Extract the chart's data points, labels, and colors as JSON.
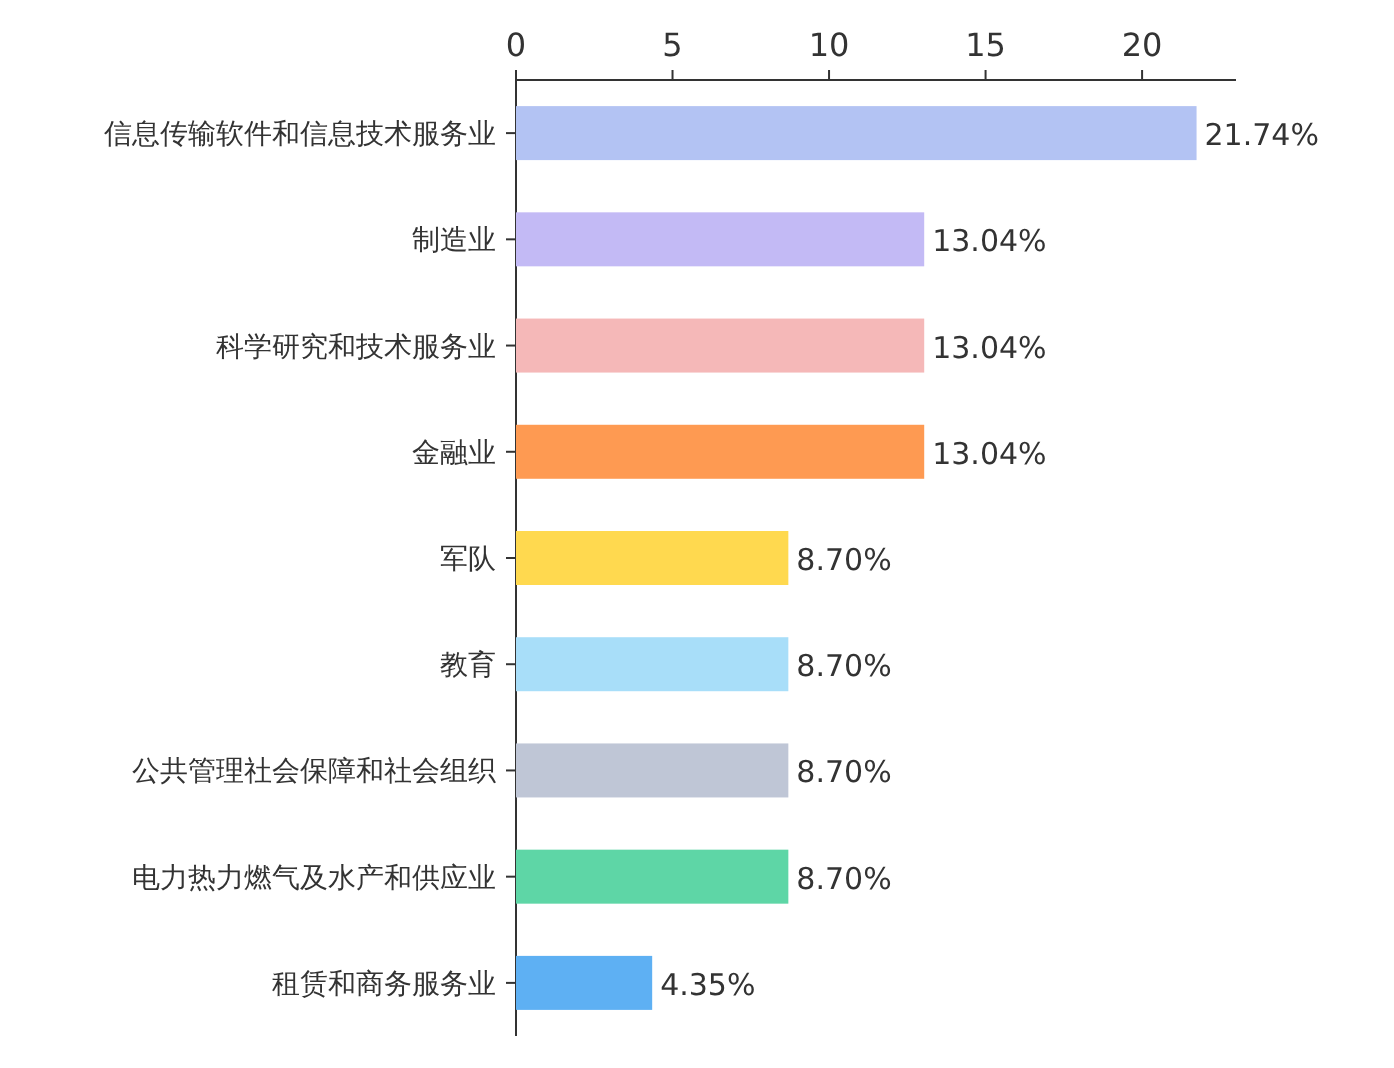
{
  "chart_data": {
    "type": "bar",
    "orientation": "horizontal",
    "categories": [
      "信息传输软件和信息技术服务业",
      "制造业",
      "科学研究和技术服务业",
      "金融业",
      "军队",
      "教育",
      "公共管理社会保障和社会组织",
      "电力热力燃气及水产和供应业",
      "租赁和商务服务业"
    ],
    "values": [
      21.74,
      13.04,
      13.04,
      13.04,
      8.7,
      8.7,
      8.7,
      8.7,
      4.35
    ],
    "value_labels": [
      "21.74%",
      "13.04%",
      "13.04%",
      "13.04%",
      "8.70%",
      "8.70%",
      "8.70%",
      "8.70%",
      "4.35%"
    ],
    "colors": [
      "#b3c3f3",
      "#c3baf5",
      "#f5b8b8",
      "#fe9a52",
      "#ffd94f",
      "#a8def9",
      "#bfc6d6",
      "#5ed6a6",
      "#5eb0f3"
    ],
    "xlim": [
      0,
      23
    ],
    "xticks": [
      0,
      5,
      10,
      15,
      20
    ]
  }
}
